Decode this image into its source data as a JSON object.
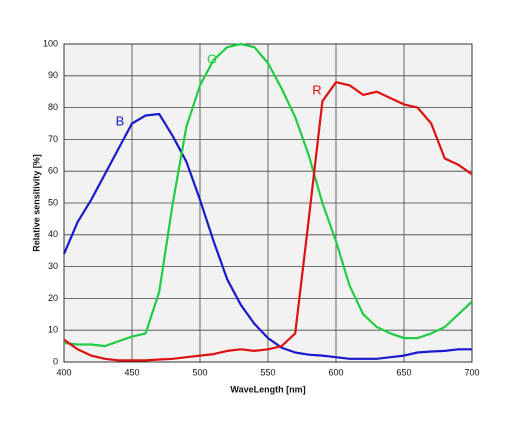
{
  "chart_data": {
    "type": "line",
    "xlabel": "WaveLength [nm]",
    "ylabel": "Relative sensitivity [%]",
    "x": [
      400,
      410,
      420,
      430,
      440,
      450,
      460,
      470,
      480,
      490,
      500,
      510,
      520,
      530,
      540,
      550,
      560,
      570,
      580,
      590,
      600,
      610,
      620,
      630,
      640,
      650,
      660,
      670,
      680,
      690,
      700
    ],
    "series": [
      {
        "name": "B",
        "color": "#1a1acc",
        "values": [
          34,
          44,
          51,
          59,
          67,
          75,
          77.5,
          78,
          71,
          63,
          51,
          38,
          26,
          18,
          12,
          7.5,
          4.5,
          3,
          2.3,
          2,
          1.5,
          1,
          1,
          1,
          1.5,
          2,
          3,
          3.3,
          3.5,
          4,
          4
        ]
      },
      {
        "name": "G",
        "color": "#22cc44",
        "values": [
          6,
          5.5,
          5.5,
          5,
          6.5,
          8,
          9,
          22,
          50,
          74,
          87,
          95,
          99,
          100,
          99,
          94,
          86,
          77,
          65,
          50,
          38,
          24,
          15,
          11,
          9,
          7.5,
          7.5,
          9,
          11,
          15,
          19
        ]
      },
      {
        "name": "R",
        "color": "#dd1111",
        "values": [
          7,
          4,
          2,
          1,
          0.5,
          0.5,
          0.5,
          0.8,
          1,
          1.5,
          2,
          2.5,
          3.5,
          4,
          3.5,
          4,
          5,
          9,
          45,
          82,
          88,
          87,
          84,
          85,
          83,
          81,
          80,
          75,
          64,
          62,
          59
        ]
      }
    ],
    "xlim": [
      400,
      700
    ],
    "ylim": [
      0,
      100
    ],
    "xticks": [
      400,
      450,
      500,
      550,
      600,
      650,
      700
    ],
    "yticks": [
      0,
      10,
      20,
      30,
      40,
      50,
      60,
      70,
      80,
      90,
      100
    ],
    "grid": true
  }
}
